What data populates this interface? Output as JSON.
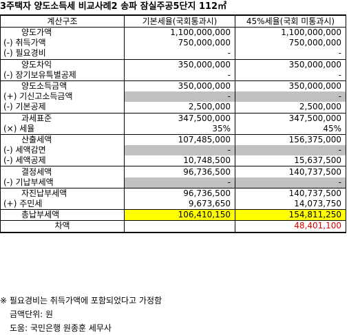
{
  "title": "3주택자 양도소득세 비교사례2 송파 잠실주공5단지 112㎡",
  "header": {
    "col1": "계산구조",
    "col2": "기본세율(국회통과시)",
    "col3": "45%세율(국회 미통과시)"
  },
  "rows": [
    {
      "label": "양도가액",
      "a": "1,100,000,000",
      "b": "1,100,000,000"
    },
    {
      "label": "(-) 취득가액",
      "a": "750,000,000",
      "b": "750,000,000"
    },
    {
      "label": "(-) 필요경비",
      "a": "-",
      "b": "-"
    },
    {
      "label": "양도차익",
      "a": "350,000,000",
      "b": "350,000,000"
    },
    {
      "label": "(-) 장기보유특별공제",
      "a": "-",
      "b": "-"
    },
    {
      "label": "양도소득금액",
      "a": "350,000,000",
      "b": "350,000,000"
    },
    {
      "label": "(+) 기신고소득금액",
      "a": "-",
      "b": "-"
    },
    {
      "label": "(-) 기본공제",
      "a": "2,500,000",
      "b": "2,500,000"
    },
    {
      "label": "과세표준",
      "a": "347,500,000",
      "b": "347,500,000"
    },
    {
      "label": "(×) 세율",
      "a": "35%",
      "b": "45%"
    },
    {
      "label": "산출세액",
      "a": "107,485,000",
      "b": "156,375,000"
    },
    {
      "label": "(-) 세액감면",
      "a": "-",
      "b": "-"
    },
    {
      "label": "(-) 세액공제",
      "a": "10,748,500",
      "b": "15,637,500"
    },
    {
      "label": "결정세액",
      "a": "96,736,500",
      "b": "140,737,500"
    },
    {
      "label": "(-) 기납부세액",
      "a": "-",
      "b": "-"
    },
    {
      "label": "자진납부세액",
      "a": "96,736,500",
      "b": "140,737,500"
    },
    {
      "label": "(+) 주민세",
      "a": "9,673,650",
      "b": "14,073,750"
    },
    {
      "label": "총납부세액",
      "a": "106,410,150",
      "b": "154,811,250"
    },
    {
      "label": "차액",
      "a": "",
      "b": "48,401,100"
    }
  ],
  "notes": [
    "※ 필요경비는 취득가액에 포함되었다고 가정함",
    "금액단위: 원",
    "도움: 국민은행 원종훈 세무사"
  ],
  "colors": {
    "gray": "#c0c0c0",
    "yellow": "#ffff00",
    "red": "#e00000"
  }
}
